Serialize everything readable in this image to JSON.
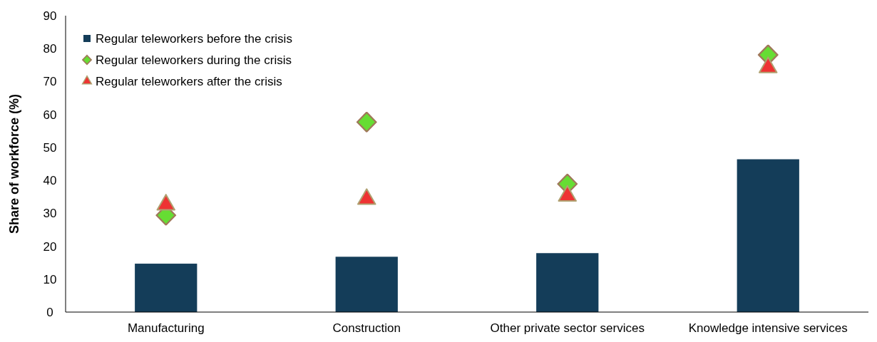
{
  "chart_data": {
    "type": "bar",
    "ylabel": "Share of workforce (%)",
    "categories": [
      "Manufacturing",
      "Construction",
      "Other private sector services",
      "Knowledge intensive services"
    ],
    "series": [
      {
        "name": "Regular teleworkers before the crisis",
        "color": "#143d59",
        "values": [
          14.7,
          16.8,
          17.9,
          46.4
        ]
      },
      {
        "name": "Regular teleworkers during the crisis",
        "type": "scatter",
        "marker": "diamond",
        "color": "#66dd33",
        "x": [
          "Manufacturing",
          "Construction",
          "Other private sector services",
          "Knowledge intensive services"
        ],
        "values": [
          29.4,
          57.7,
          38.9,
          78.1
        ]
      },
      {
        "name": "Regular teleworkers after the crisis",
        "type": "scatter",
        "marker": "triangle",
        "color": "#ee3333",
        "x": [
          "Manufacturing",
          "Construction",
          "Other private sector services",
          "Knowledge intensive services"
        ],
        "values": [
          32.6,
          34.3,
          35.3,
          74.3
        ]
      }
    ],
    "ylim": [
      0,
      90
    ],
    "yticks": [
      0,
      10,
      20,
      30,
      40,
      50,
      60,
      70,
      80,
      90
    ],
    "grid": false,
    "legend": "top left"
  }
}
